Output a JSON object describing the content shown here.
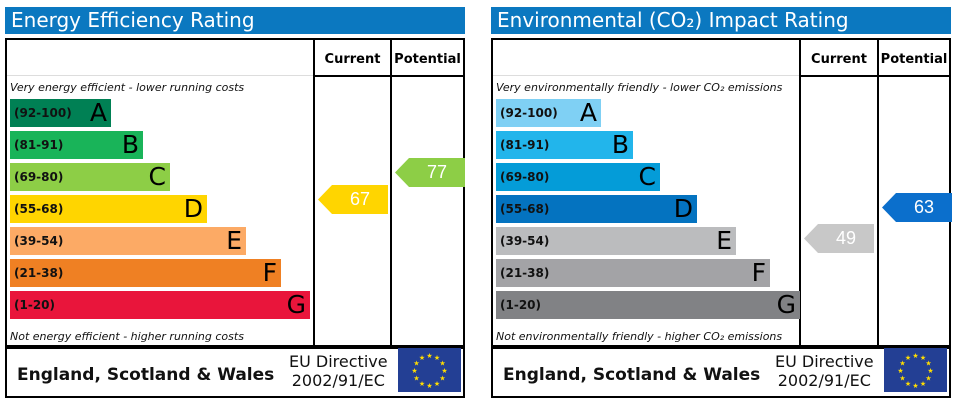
{
  "chart_data": [
    {
      "type": "bar",
      "title": "Energy Efficiency Rating",
      "columns": [
        "Current",
        "Potential"
      ],
      "top_note": "Very energy efficient - lower running costs",
      "bottom_note": "Not energy efficient - higher running costs",
      "bands": [
        {
          "range": "(92-100)",
          "letter": "A",
          "color": "#008054"
        },
        {
          "range": "(81-91)",
          "letter": "B",
          "color": "#19b459"
        },
        {
          "range": "(69-80)",
          "letter": "C",
          "color": "#8dce46"
        },
        {
          "range": "(55-68)",
          "letter": "D",
          "color": "#ffd500"
        },
        {
          "range": "(39-54)",
          "letter": "E",
          "color": "#fcaa65"
        },
        {
          "range": "(21-38)",
          "letter": "F",
          "color": "#ef8023"
        },
        {
          "range": "(1-20)",
          "letter": "G",
          "color": "#e9153b"
        }
      ],
      "current": {
        "value": 67,
        "band": "D",
        "color": "#ffd500"
      },
      "potential": {
        "value": 77,
        "band": "C",
        "color": "#8dce46"
      },
      "footer": "England, Scotland & Wales",
      "directive": [
        "EU Directive",
        "2002/91/EC"
      ]
    },
    {
      "type": "bar",
      "title": "Environmental (CO₂) Impact Rating",
      "columns": [
        "Current",
        "Potential"
      ],
      "top_note": "Very environmentally friendly - lower CO₂ emissions",
      "bottom_note": "Not environmentally friendly - higher CO₂ emissions",
      "bands": [
        {
          "range": "(92-100)",
          "letter": "A",
          "color": "#7fd0f4"
        },
        {
          "range": "(81-91)",
          "letter": "B",
          "color": "#22b5eb"
        },
        {
          "range": "(69-80)",
          "letter": "C",
          "color": "#049cd8"
        },
        {
          "range": "(55-68)",
          "letter": "D",
          "color": "#0473c0"
        },
        {
          "range": "(39-54)",
          "letter": "E",
          "color": "#bbbcbe"
        },
        {
          "range": "(21-38)",
          "letter": "F",
          "color": "#a3a3a6"
        },
        {
          "range": "(1-20)",
          "letter": "G",
          "color": "#818285"
        }
      ],
      "current": {
        "value": 49,
        "band": "E",
        "color": "#c8c8c8"
      },
      "potential": {
        "value": 63,
        "band": "D",
        "color": "#0b6fcc"
      },
      "footer": "England, Scotland & Wales",
      "directive": [
        "EU Directive",
        "2002/91/EC"
      ]
    }
  ]
}
